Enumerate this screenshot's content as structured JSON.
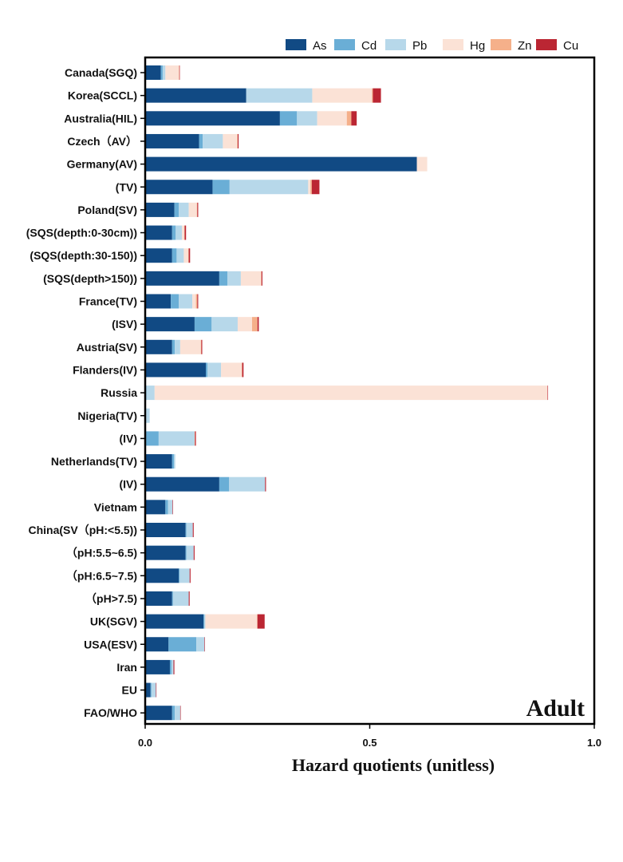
{
  "chart_data": {
    "type": "bar",
    "orientation": "horizontal",
    "stacked": true,
    "panel_label": "Adult",
    "xlabel": "Hazard quotients (unitless)",
    "xlim": [
      0,
      1.0
    ],
    "xticks": [
      0.0,
      0.5,
      1.0
    ],
    "xtick_labels": [
      "0.0",
      "0.5",
      "1.0"
    ],
    "legend_position": "top-right",
    "categories": [
      "Canada(SGQ)",
      "Korea(SCCL)",
      "Australia(HIL)",
      "Czech（AV）",
      "Germany(AV)",
      "(TV)",
      "Poland(SV)",
      "(SQS(depth:0-30cm))",
      "(SQS(depth:30-150))",
      "(SQS(depth>150))",
      "France(TV)",
      "(ISV)",
      "Austria(SV)",
      "Flanders(IV)",
      "Russia",
      "Nigeria(TV)",
      "(IV)",
      "Netherlands(TV)",
      "(IV)",
      "Vietnam",
      "China(SV（pH:<5.5))",
      "（pH:5.5~6.5)",
      "（pH:6.5~7.5)",
      "（pH>7.5)",
      "UK(SGV)",
      "USA(ESV)",
      "Iran",
      "EU",
      "FAO/WHO"
    ],
    "series": [
      {
        "name": "As",
        "color": "#114a84",
        "values": [
          0.035,
          0.225,
          0.3,
          0.12,
          0.605,
          0.15,
          0.065,
          0.06,
          0.06,
          0.165,
          0.057,
          0.11,
          0.06,
          0.135,
          0.0,
          0.0,
          0.0,
          0.06,
          0.165,
          0.045,
          0.09,
          0.09,
          0.075,
          0.06,
          0.13,
          0.052,
          0.055,
          0.012,
          0.06
        ]
      },
      {
        "name": "Cd",
        "color": "#6aaed6",
        "values": [
          0.004,
          0.0,
          0.038,
          0.008,
          0.0,
          0.038,
          0.01,
          0.008,
          0.01,
          0.018,
          0.018,
          0.038,
          0.006,
          0.004,
          0.003,
          0.002,
          0.03,
          0.004,
          0.022,
          0.006,
          0.002,
          0.002,
          0.002,
          0.002,
          0.002,
          0.062,
          0.004,
          0.002,
          0.006
        ]
      },
      {
        "name": "Pb",
        "color": "#b7d8ea",
        "values": [
          0.006,
          0.147,
          0.045,
          0.045,
          0.0,
          0.175,
          0.022,
          0.014,
          0.016,
          0.03,
          0.03,
          0.058,
          0.012,
          0.03,
          0.018,
          0.008,
          0.08,
          0.003,
          0.08,
          0.01,
          0.014,
          0.016,
          0.022,
          0.035,
          0.002,
          0.018,
          0.004,
          0.01,
          0.012
        ]
      },
      {
        "name": "Hg",
        "color": "#fbe2d6",
        "values": [
          0.03,
          0.133,
          0.066,
          0.032,
          0.023,
          0.005,
          0.018,
          0.005,
          0.01,
          0.045,
          0.008,
          0.032,
          0.046,
          0.046,
          0.875,
          0.0,
          0.0,
          0.0,
          0.0,
          0.0,
          0.0,
          0.0,
          0.0,
          0.0,
          0.115,
          0.0,
          0.0,
          0.0,
          0.0
        ]
      },
      {
        "name": "Zn",
        "color": "#f5b08a",
        "values": [
          0.001,
          0.002,
          0.01,
          0.001,
          0.0,
          0.003,
          0.001,
          0.001,
          0.001,
          0.001,
          0.003,
          0.012,
          0.001,
          0.001,
          0.0,
          0.0,
          0.001,
          0.0,
          0.0,
          0.0,
          0.0,
          0.0,
          0.0,
          0.0,
          0.001,
          0.0,
          0.0,
          0.0,
          0.0
        ]
      },
      {
        "name": "Cu",
        "color": "#bb2633",
        "values": [
          0.001,
          0.018,
          0.012,
          0.002,
          0.0,
          0.017,
          0.002,
          0.003,
          0.003,
          0.002,
          0.002,
          0.003,
          0.002,
          0.003,
          0.001,
          0.0,
          0.002,
          0.0,
          0.002,
          0.001,
          0.002,
          0.002,
          0.002,
          0.002,
          0.016,
          0.001,
          0.002,
          0.001,
          0.001
        ]
      }
    ]
  }
}
